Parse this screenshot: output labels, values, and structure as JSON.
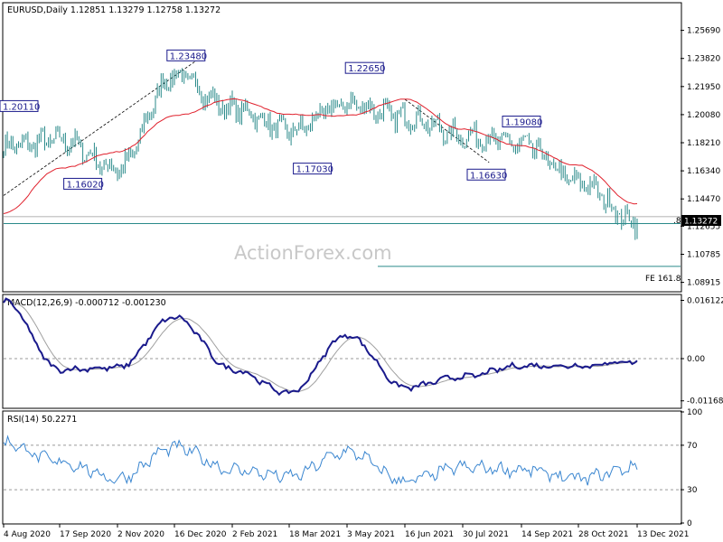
{
  "header": {
    "main": "EURUSD,Daily  1.12851 1.13279 1.12758 1.13272",
    "macd": "MACD(12,26,9) -0.000712 -0.001230",
    "rsi": "RSI(14) 50.2271"
  },
  "watermark": "ActionForex.com",
  "colors": {
    "price": "#2a8a8a",
    "ma": "#e0202c",
    "macd": "#1a1a8c",
    "signal": "#a0a0a0",
    "annotation": "#1a1a8c"
  },
  "chart_data": [
    {
      "type": "line",
      "panel": "price",
      "ylim": [
        1.0835,
        1.2747
      ],
      "yticks": [
        "1.25690",
        "1.23820",
        "1.21950",
        "1.20080",
        "1.18210",
        "1.16340",
        "1.14470",
        "1.12655",
        "1.10785",
        "1.08915"
      ],
      "ytick_values": [
        1.2569,
        1.2382,
        1.2195,
        1.2008,
        1.1821,
        1.1634,
        1.1447,
        1.12655,
        1.10785,
        1.08915
      ],
      "x_dates": [
        "4 Aug 2020",
        "17 Sep 2020",
        "2 Nov 2020",
        "16 Dec 2020",
        "2 Feb 2021",
        "18 Mar 2021",
        "3 May 2021",
        "16 Jun 2021",
        "30 Jul 2021",
        "14 Sep 2021",
        "28 Oct 2021",
        "13 Dec 2021"
      ],
      "current_price": "1.13272",
      "price_label": "1.13272",
      "fib_label": "FE 161.8",
      "fib_value": 1.0998,
      "fib_line_label": ".8",
      "support_line": 1.1283,
      "pivot_labels": [
        {
          "text": "1.20110",
          "date_index": 0,
          "value": 1.2011,
          "pos": "above"
        },
        {
          "text": "1.16020",
          "date_index": 1.4,
          "value": 1.1602,
          "pos": "below"
        },
        {
          "text": "1.23480",
          "date_index": 3.2,
          "value": 1.2348,
          "pos": "above"
        },
        {
          "text": "1.17030",
          "date_index": 5.4,
          "value": 1.1703,
          "pos": "below"
        },
        {
          "text": "1.22650",
          "date_index": 6.3,
          "value": 1.2265,
          "pos": "above"
        },
        {
          "text": "1.16630",
          "date_index": 8.4,
          "value": 1.1663,
          "pos": "below"
        },
        {
          "text": "1.19080",
          "date_index": 9.0,
          "value": 1.1908,
          "pos": "above"
        }
      ],
      "series": [
        {
          "name": "",
          "kind": "close",
          "points": [
            [
              "4 Aug 2020",
              1.18
            ],
            [
              "17 Sep 2020",
              1.184
            ],
            [
              "2 Nov 2020",
              1.165
            ],
            [
              "16 Dec 2020",
              1.227
            ],
            [
              "2 Feb 2021",
              1.205
            ],
            [
              "18 Mar 2021",
              1.19
            ],
            [
              "3 May 2021",
              1.208
            ],
            [
              "16 Jun 2021",
              1.199
            ],
            [
              "30 Jul 2021",
              1.187
            ],
            [
              "14 Sep 2021",
              1.181
            ],
            [
              "28 Oct 2021",
              1.156
            ],
            [
              "13 Dec 2021",
              1.129
            ]
          ]
        },
        {
          "name": "",
          "kind": "ma",
          "points": [
            [
              "4 Aug 2020",
              1.135
            ],
            [
              "17 Sep 2020",
              1.165
            ],
            [
              "2 Nov 2020",
              1.176
            ],
            [
              "16 Dec 2020",
              1.2
            ],
            [
              "2 Feb 2021",
              1.211
            ],
            [
              "18 Mar 2021",
              1.201
            ],
            [
              "3 May 2021",
              1.2
            ],
            [
              "16 Jun 2021",
              1.211
            ],
            [
              "30 Jul 2021",
              1.191
            ],
            [
              "14 Sep 2021",
              1.18
            ],
            [
              "28 Oct 2021",
              1.167
            ],
            [
              "13 Dec 2021",
              1.141
            ]
          ]
        }
      ]
    },
    {
      "type": "line",
      "panel": "macd",
      "ylim": [
        -0.0135,
        0.0175
      ],
      "yticks": [
        "0.016122",
        "0.00",
        "-0.011681"
      ],
      "ytick_values": [
        0.016122,
        0.0,
        -0.011681
      ],
      "series": [
        {
          "name": "",
          "kind": "macd",
          "points": [
            [
              "4 Aug 2020",
              0.016
            ],
            [
              "17 Sep 2020",
              -0.003
            ],
            [
              "2 Nov 2020",
              -0.0025
            ],
            [
              "16 Dec 2020",
              0.0115
            ],
            [
              "2 Feb 2021",
              -0.003
            ],
            [
              "18 Mar 2021",
              -0.0095
            ],
            [
              "3 May 2021",
              0.0065
            ],
            [
              "16 Jun 2021",
              -0.008
            ],
            [
              "30 Jul 2021",
              -0.005
            ],
            [
              "14 Sep 2021",
              -0.002
            ],
            [
              "28 Oct 2021",
              -0.002
            ],
            [
              "13 Dec 2021",
              -0.0007
            ]
          ]
        }
      ]
    },
    {
      "type": "line",
      "panel": "rsi",
      "ylim": [
        0,
        100
      ],
      "yticks": [
        "100",
        "70",
        "30",
        "0"
      ],
      "ytick_values": [
        100,
        70,
        30,
        0
      ],
      "levels": [
        70,
        30
      ],
      "series": [
        {
          "name": "",
          "kind": "rsi",
          "points": [
            [
              "4 Aug 2020",
              72
            ],
            [
              "17 Sep 2020",
              55
            ],
            [
              "2 Nov 2020",
              40
            ],
            [
              "16 Dec 2020",
              68
            ],
            [
              "2 Feb 2021",
              48
            ],
            [
              "18 Mar 2021",
              42
            ],
            [
              "3 May 2021",
              64
            ],
            [
              "16 Jun 2021",
              38
            ],
            [
              "30 Jul 2021",
              50
            ],
            [
              "14 Sep 2021",
              48
            ],
            [
              "28 Oct 2021",
              40
            ],
            [
              "13 Dec 2021",
              50.2271
            ]
          ]
        }
      ]
    }
  ]
}
